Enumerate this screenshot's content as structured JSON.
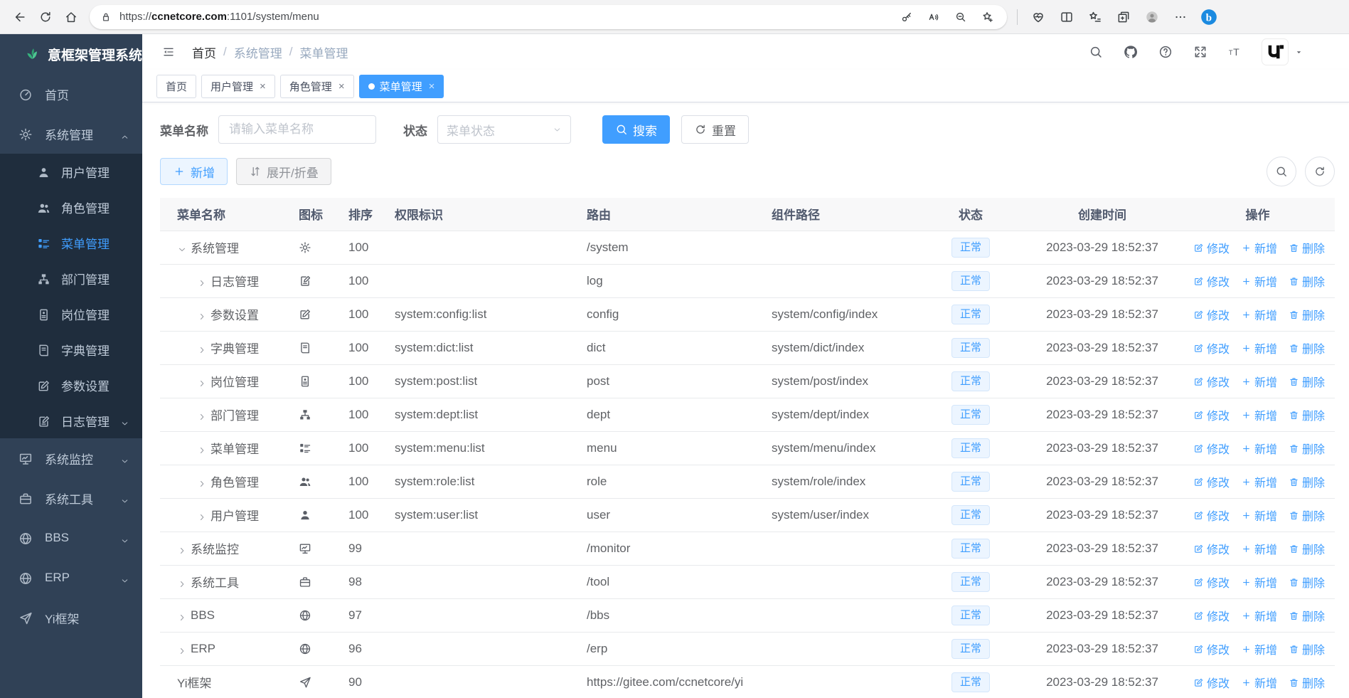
{
  "browser": {
    "url_scheme": "https://",
    "url_host": "ccnetcore.com",
    "url_rest": ":1101/system/menu",
    "left_icons": [
      "back",
      "reload",
      "home"
    ],
    "pill_icons": [
      "key",
      "readaloud",
      "zoomout",
      "starplus"
    ],
    "right_icons": [
      "essentials",
      "split",
      "favbar",
      "collections",
      "profile",
      "dots",
      "bing"
    ]
  },
  "sidebar": {
    "title": "意框架管理系统",
    "items": [
      {
        "label": "首页",
        "icon": "dashboard"
      },
      {
        "label": "系统管理",
        "icon": "gear",
        "state": "expanded",
        "children": [
          {
            "label": "用户管理",
            "icon": "user"
          },
          {
            "label": "角色管理",
            "icon": "users"
          },
          {
            "label": "菜单管理",
            "icon": "menu",
            "active": true
          },
          {
            "label": "部门管理",
            "icon": "dept"
          },
          {
            "label": "岗位管理",
            "icon": "post"
          },
          {
            "label": "字典管理",
            "icon": "dict"
          },
          {
            "label": "参数设置",
            "icon": "edit"
          },
          {
            "label": "日志管理",
            "icon": "log",
            "arrow": "down"
          }
        ]
      },
      {
        "label": "系统监控",
        "icon": "monitor",
        "arrow": "down"
      },
      {
        "label": "系统工具",
        "icon": "tool",
        "arrow": "down"
      },
      {
        "label": "BBS",
        "icon": "globe",
        "arrow": "down"
      },
      {
        "label": "ERP",
        "icon": "globe",
        "arrow": "down"
      },
      {
        "label": "Yi框架",
        "icon": "plane"
      }
    ]
  },
  "header": {
    "breadcrumb": {
      "0": "首页",
      "1": "系统管理",
      "2": "菜单管理"
    },
    "icons": [
      "search",
      "github",
      "question",
      "fullscreen",
      "fontsize"
    ]
  },
  "tabs": [
    {
      "label": "首页",
      "closable": false,
      "active": false
    },
    {
      "label": "用户管理",
      "closable": true,
      "active": false
    },
    {
      "label": "角色管理",
      "closable": true,
      "active": false
    },
    {
      "label": "菜单管理",
      "closable": true,
      "active": true
    }
  ],
  "filters": {
    "name_label": "菜单名称",
    "name_placeholder": "请输入菜单名称",
    "status_label": "状态",
    "status_placeholder": "菜单状态",
    "search_label": "搜索",
    "reset_label": "重置"
  },
  "toolbar": {
    "add_label": "新增",
    "toggle_label": "展开/折叠"
  },
  "table": {
    "columns": {
      "0": "菜单名称",
      "1": "图标",
      "2": "排序",
      "3": "权限标识",
      "4": "路由",
      "5": "组件路径",
      "6": "状态",
      "7": "创建时间",
      "8": "操作"
    },
    "action_edit": "修改",
    "action_add": "新增",
    "action_delete": "删除",
    "rows": [
      {
        "name": "系统管理",
        "icon": "gear",
        "sort": "100",
        "perm": "",
        "route": "/system",
        "component": "",
        "status": "正常",
        "created": "2023-03-29 18:52:37",
        "level": 0,
        "expand": "open"
      },
      {
        "name": "日志管理",
        "icon": "log",
        "sort": "100",
        "perm": "",
        "route": "log",
        "component": "",
        "status": "正常",
        "created": "2023-03-29 18:52:37",
        "level": 1,
        "expand": "closed"
      },
      {
        "name": "参数设置",
        "icon": "edit",
        "sort": "100",
        "perm": "system:config:list",
        "route": "config",
        "component": "system/config/index",
        "status": "正常",
        "created": "2023-03-29 18:52:37",
        "level": 1,
        "expand": "closed"
      },
      {
        "name": "字典管理",
        "icon": "dict",
        "sort": "100",
        "perm": "system:dict:list",
        "route": "dict",
        "component": "system/dict/index",
        "status": "正常",
        "created": "2023-03-29 18:52:37",
        "level": 1,
        "expand": "closed"
      },
      {
        "name": "岗位管理",
        "icon": "post",
        "sort": "100",
        "perm": "system:post:list",
        "route": "post",
        "component": "system/post/index",
        "status": "正常",
        "created": "2023-03-29 18:52:37",
        "level": 1,
        "expand": "closed"
      },
      {
        "name": "部门管理",
        "icon": "dept",
        "sort": "100",
        "perm": "system:dept:list",
        "route": "dept",
        "component": "system/dept/index",
        "status": "正常",
        "created": "2023-03-29 18:52:37",
        "level": 1,
        "expand": "closed"
      },
      {
        "name": "菜单管理",
        "icon": "menu",
        "sort": "100",
        "perm": "system:menu:list",
        "route": "menu",
        "component": "system/menu/index",
        "status": "正常",
        "created": "2023-03-29 18:52:37",
        "level": 1,
        "expand": "closed"
      },
      {
        "name": "角色管理",
        "icon": "users",
        "sort": "100",
        "perm": "system:role:list",
        "route": "role",
        "component": "system/role/index",
        "status": "正常",
        "created": "2023-03-29 18:52:37",
        "level": 1,
        "expand": "closed"
      },
      {
        "name": "用户管理",
        "icon": "user",
        "sort": "100",
        "perm": "system:user:list",
        "route": "user",
        "component": "system/user/index",
        "status": "正常",
        "created": "2023-03-29 18:52:37",
        "level": 1,
        "expand": "closed"
      },
      {
        "name": "系统监控",
        "icon": "monitor",
        "sort": "99",
        "perm": "",
        "route": "/monitor",
        "component": "",
        "status": "正常",
        "created": "2023-03-29 18:52:37",
        "level": 0,
        "expand": "closed"
      },
      {
        "name": "系统工具",
        "icon": "tool",
        "sort": "98",
        "perm": "",
        "route": "/tool",
        "component": "",
        "status": "正常",
        "created": "2023-03-29 18:52:37",
        "level": 0,
        "expand": "closed"
      },
      {
        "name": "BBS",
        "icon": "globe",
        "sort": "97",
        "perm": "",
        "route": "/bbs",
        "component": "",
        "status": "正常",
        "created": "2023-03-29 18:52:37",
        "level": 0,
        "expand": "closed"
      },
      {
        "name": "ERP",
        "icon": "globe",
        "sort": "96",
        "perm": "",
        "route": "/erp",
        "component": "",
        "status": "正常",
        "created": "2023-03-29 18:52:37",
        "level": 0,
        "expand": "closed"
      },
      {
        "name": "Yi框架",
        "icon": "plane",
        "sort": "90",
        "perm": "",
        "route": "https://gitee.com/ccnetcore/yi",
        "component": "",
        "status": "正常",
        "created": "2023-03-29 18:52:37",
        "level": 0,
        "expand": "none"
      }
    ]
  },
  "colors": {
    "accent": "#409eff",
    "sidebar_bg": "#304156",
    "submenu_bg": "#1f2d3d",
    "logo_green": "#36b27d"
  }
}
